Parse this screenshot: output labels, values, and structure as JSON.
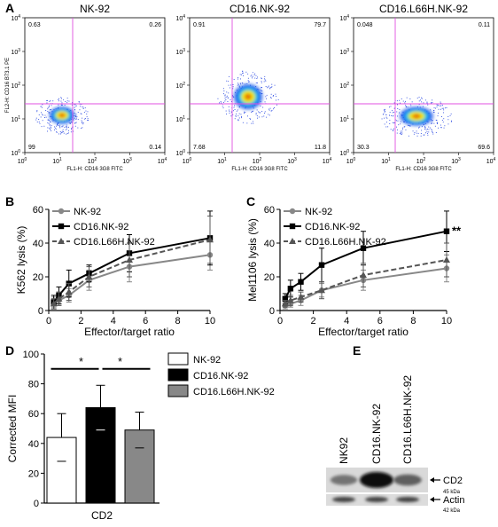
{
  "panel_letters": {
    "a": "A",
    "b": "B",
    "c": "C",
    "d": "D",
    "e": "E"
  },
  "flow": {
    "plots": [
      {
        "title": "NK-92",
        "quadrants": {
          "ul": "0.63",
          "ur": "0.26",
          "ll": "99",
          "lr": "0.14"
        }
      },
      {
        "title": "CD16.NK-92",
        "quadrants": {
          "ul": "0.91",
          "ur": "79.7",
          "ll": "7.68",
          "lr": "11.8"
        }
      },
      {
        "title": "CD16.L66H.NK-92",
        "quadrants": {
          "ul": "0.048",
          "ur": "0.11",
          "ll": "30.3",
          "lr": "69.6"
        }
      }
    ],
    "xlabel": "FL1-H: CD16 3G8 FITC",
    "ylabel": "FL2-H: CD16 B73.1 PE",
    "ticks": [
      {
        "base": "10",
        "exp": "0"
      },
      {
        "base": "10",
        "exp": "1"
      },
      {
        "base": "10",
        "exp": "2"
      },
      {
        "base": "10",
        "exp": "3"
      },
      {
        "base": "10",
        "exp": "4"
      }
    ]
  },
  "chart_data": [
    {
      "panel": "B",
      "type": "line",
      "xlabel": "Effector/target ratio",
      "ylabel": "K562 lysis (%)",
      "xlim": [
        0,
        10
      ],
      "ylim": [
        0,
        60
      ],
      "xticks": [
        0,
        2,
        4,
        6,
        8,
        10
      ],
      "yticks": [
        0,
        20,
        40,
        60
      ],
      "series": [
        {
          "name": "NK-92",
          "color": "#888888",
          "marker": "circle",
          "dash": "solid",
          "x": [
            0.31,
            0.63,
            1.25,
            2.5,
            5,
            10
          ],
          "y": [
            5,
            6,
            9,
            18,
            26,
            33
          ],
          "err": [
            3,
            3,
            4,
            6,
            9,
            9
          ]
        },
        {
          "name": "CD16.NK-92",
          "color": "#000000",
          "marker": "square",
          "dash": "solid",
          "x": [
            0.31,
            0.63,
            1.25,
            2.5,
            5,
            10
          ],
          "y": [
            5,
            9,
            16,
            22,
            34,
            43
          ],
          "err": [
            4,
            5,
            8,
            5,
            11,
            16
          ]
        },
        {
          "name": "CD16.L66H.NK-92",
          "color": "#555555",
          "marker": "triangle",
          "dash": "dashed",
          "x": [
            0.31,
            0.63,
            1.25,
            2.5,
            5,
            10
          ],
          "y": [
            4,
            7,
            11,
            20,
            30,
            42
          ],
          "err": [
            3,
            4,
            5,
            6,
            10,
            14
          ]
        }
      ]
    },
    {
      "panel": "C",
      "type": "line",
      "xlabel": "Effector/target ratio",
      "ylabel": "Mel1106 lysis (%)",
      "xlim": [
        0,
        10
      ],
      "ylim": [
        0,
        60
      ],
      "xticks": [
        0,
        2,
        4,
        6,
        8,
        10
      ],
      "yticks": [
        0,
        20,
        40,
        60
      ],
      "annotation": "**",
      "series": [
        {
          "name": "NK-92",
          "color": "#888888",
          "marker": "circle",
          "dash": "solid",
          "x": [
            0.31,
            0.63,
            1.25,
            2.5,
            5,
            10
          ],
          "y": [
            3,
            4,
            6,
            12,
            18,
            25
          ],
          "err": [
            2,
            2,
            3,
            4,
            6,
            8
          ]
        },
        {
          "name": "CD16.NK-92",
          "color": "#000000",
          "marker": "square",
          "dash": "solid",
          "x": [
            0.31,
            0.63,
            1.25,
            2.5,
            5,
            10
          ],
          "y": [
            7,
            13,
            17,
            27,
            37,
            47
          ],
          "err": [
            3,
            5,
            5,
            10,
            10,
            12
          ]
        },
        {
          "name": "CD16.L66H.NK-92",
          "color": "#555555",
          "marker": "triangle",
          "dash": "dashed",
          "x": [
            0.31,
            0.63,
            1.25,
            2.5,
            5,
            10
          ],
          "y": [
            4,
            6,
            8,
            12,
            21,
            30
          ],
          "err": [
            2,
            3,
            3,
            5,
            7,
            10
          ]
        }
      ]
    },
    {
      "panel": "D",
      "type": "bar",
      "categories": [
        "NK-92",
        "CD16.NK-92",
        "CD16.L66H.NK-92"
      ],
      "xlabel": "CD2",
      "ylabel": "Corrected MFI",
      "ylim": [
        0,
        100
      ],
      "yticks": [
        0,
        20,
        40,
        60,
        80,
        100
      ],
      "values": [
        44,
        64,
        49
      ],
      "err": [
        16,
        15,
        12
      ],
      "colors": [
        "#ffffff",
        "#000000",
        "#888888"
      ],
      "significance": [
        "*",
        "*"
      ]
    }
  ],
  "western": {
    "lanes": [
      "NK92",
      "CD16.NK-92",
      "CD16.L66H.NK-92"
    ],
    "bands": [
      {
        "label": "CD2",
        "kda": "45 kDa",
        "intensity": [
          0.45,
          1.0,
          0.55
        ]
      },
      {
        "label": "Actin",
        "kda": "42 kDa",
        "intensity": [
          0.7,
          0.7,
          0.7
        ]
      }
    ]
  }
}
